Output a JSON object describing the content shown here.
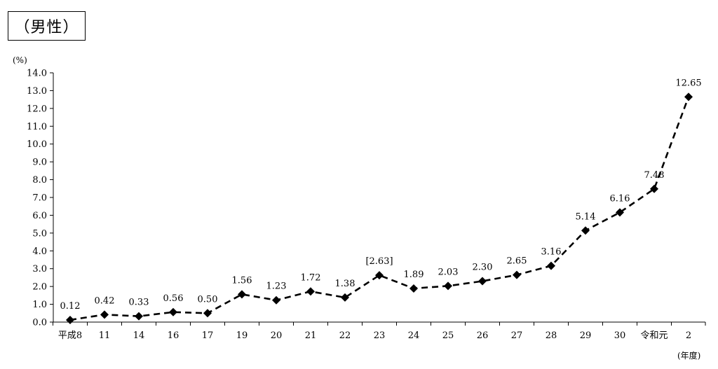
{
  "chart_data": {
    "type": "line",
    "title": "（男性）",
    "ylabel": "(%)",
    "xlabel": "(年度)",
    "ylim": [
      0,
      14
    ],
    "yticks": [
      "0.0",
      "1.0",
      "2.0",
      "3.0",
      "4.0",
      "5.0",
      "6.0",
      "7.0",
      "8.0",
      "9.0",
      "10.0",
      "11.0",
      "12.0",
      "13.0",
      "14.0"
    ],
    "categories": [
      "平成8",
      "11",
      "14",
      "16",
      "17",
      "19",
      "20",
      "21",
      "22",
      "23",
      "24",
      "25",
      "26",
      "27",
      "28",
      "29",
      "30",
      "令和元",
      "2"
    ],
    "series": [
      {
        "values": [
          0.12,
          0.42,
          0.33,
          0.56,
          0.5,
          1.56,
          1.23,
          1.72,
          1.38,
          2.63,
          1.89,
          2.03,
          2.3,
          2.65,
          3.16,
          5.14,
          6.16,
          7.48,
          12.65
        ],
        "labels": [
          "0.12",
          "0.42",
          "0.33",
          "0.56",
          "0.50",
          "1.56",
          "1.23",
          "1.72",
          "1.38",
          "[2.63]",
          "1.89",
          "2.03",
          "2.30",
          "2.65",
          "3.16",
          "5.14",
          "6.16",
          "7.48",
          "12.65"
        ],
        "color": "#000000",
        "line_style": "dashed",
        "marker": "diamond"
      }
    ],
    "grid": false,
    "legend": "none"
  }
}
